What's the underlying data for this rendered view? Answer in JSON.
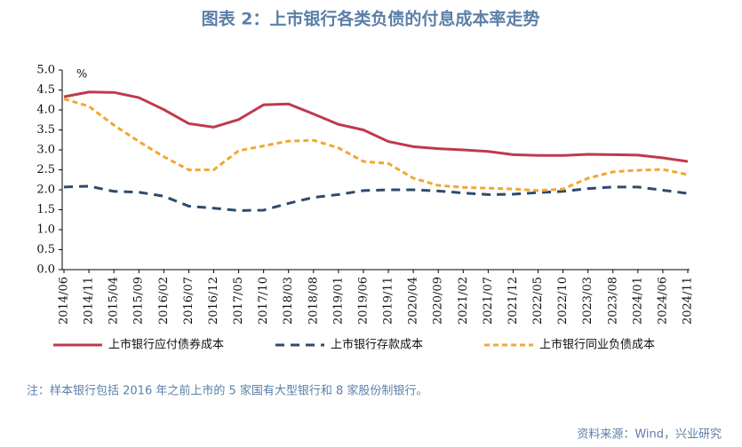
{
  "chart_data": {
    "type": "line",
    "title": "图表 2：上市银行各类负债的付息成本率走势",
    "y_unit": "%",
    "categories": [
      "2014/06",
      "2014/11",
      "2015/04",
      "2015/09",
      "2016/02",
      "2016/07",
      "2016/12",
      "2017/05",
      "2017/10",
      "2018/03",
      "2018/08",
      "2019/01",
      "2019/06",
      "2019/11",
      "2020/04",
      "2020/09",
      "2021/02",
      "2021/07",
      "2021/12",
      "2022/05",
      "2022/10",
      "2023/03",
      "2023/08",
      "2024/01",
      "2024/06",
      "2024/11"
    ],
    "series": [
      {
        "name": "上市银行应付债券成本",
        "color": "#c0394b",
        "dash": "solid",
        "values": [
          4.33,
          4.45,
          4.44,
          4.31,
          4.01,
          3.66,
          3.57,
          3.76,
          4.13,
          4.15,
          3.9,
          3.64,
          3.5,
          3.21,
          3.08,
          3.03,
          3.0,
          2.96,
          2.88,
          2.86,
          2.86,
          2.89,
          2.88,
          2.87,
          2.8,
          2.71
        ]
      },
      {
        "name": "上市银行存款成本",
        "color": "#2e4a6e",
        "dash": "dashed",
        "values": [
          2.07,
          2.09,
          1.96,
          1.94,
          1.84,
          1.59,
          1.54,
          1.48,
          1.49,
          1.66,
          1.81,
          1.88,
          1.98,
          2.0,
          2.0,
          1.97,
          1.92,
          1.88,
          1.89,
          1.93,
          1.96,
          2.03,
          2.07,
          2.07,
          1.99,
          1.91
        ]
      },
      {
        "name": "上市银行同业负债成本",
        "color": "#f0a830",
        "dash": "dotted",
        "values": [
          4.28,
          4.09,
          3.62,
          3.21,
          2.83,
          2.5,
          2.5,
          2.98,
          3.1,
          3.22,
          3.24,
          3.05,
          2.71,
          2.66,
          2.29,
          2.11,
          2.06,
          2.04,
          2.02,
          1.98,
          2.02,
          2.29,
          2.45,
          2.49,
          2.51,
          2.38
        ]
      }
    ],
    "ylim": [
      0,
      5
    ],
    "yticks": [
      {
        "value": 0,
        "label": "0.0"
      },
      0.5,
      {
        "value": 1,
        "label": "1.0"
      },
      1.5,
      {
        "value": 2,
        "label": "2.0"
      },
      2.5,
      {
        "value": 3,
        "label": "3.0"
      },
      3.5,
      {
        "value": 4,
        "label": "4.0"
      },
      4.5,
      {
        "value": 5,
        "label": "5.0"
      }
    ],
    "grid": false,
    "legend": "bottom",
    "note": "注：样本银行包括 2016 年之前上市的 5 家国有大型银行和 8 家股份制银行。",
    "source": "资料来源：Wind，兴业研究"
  }
}
